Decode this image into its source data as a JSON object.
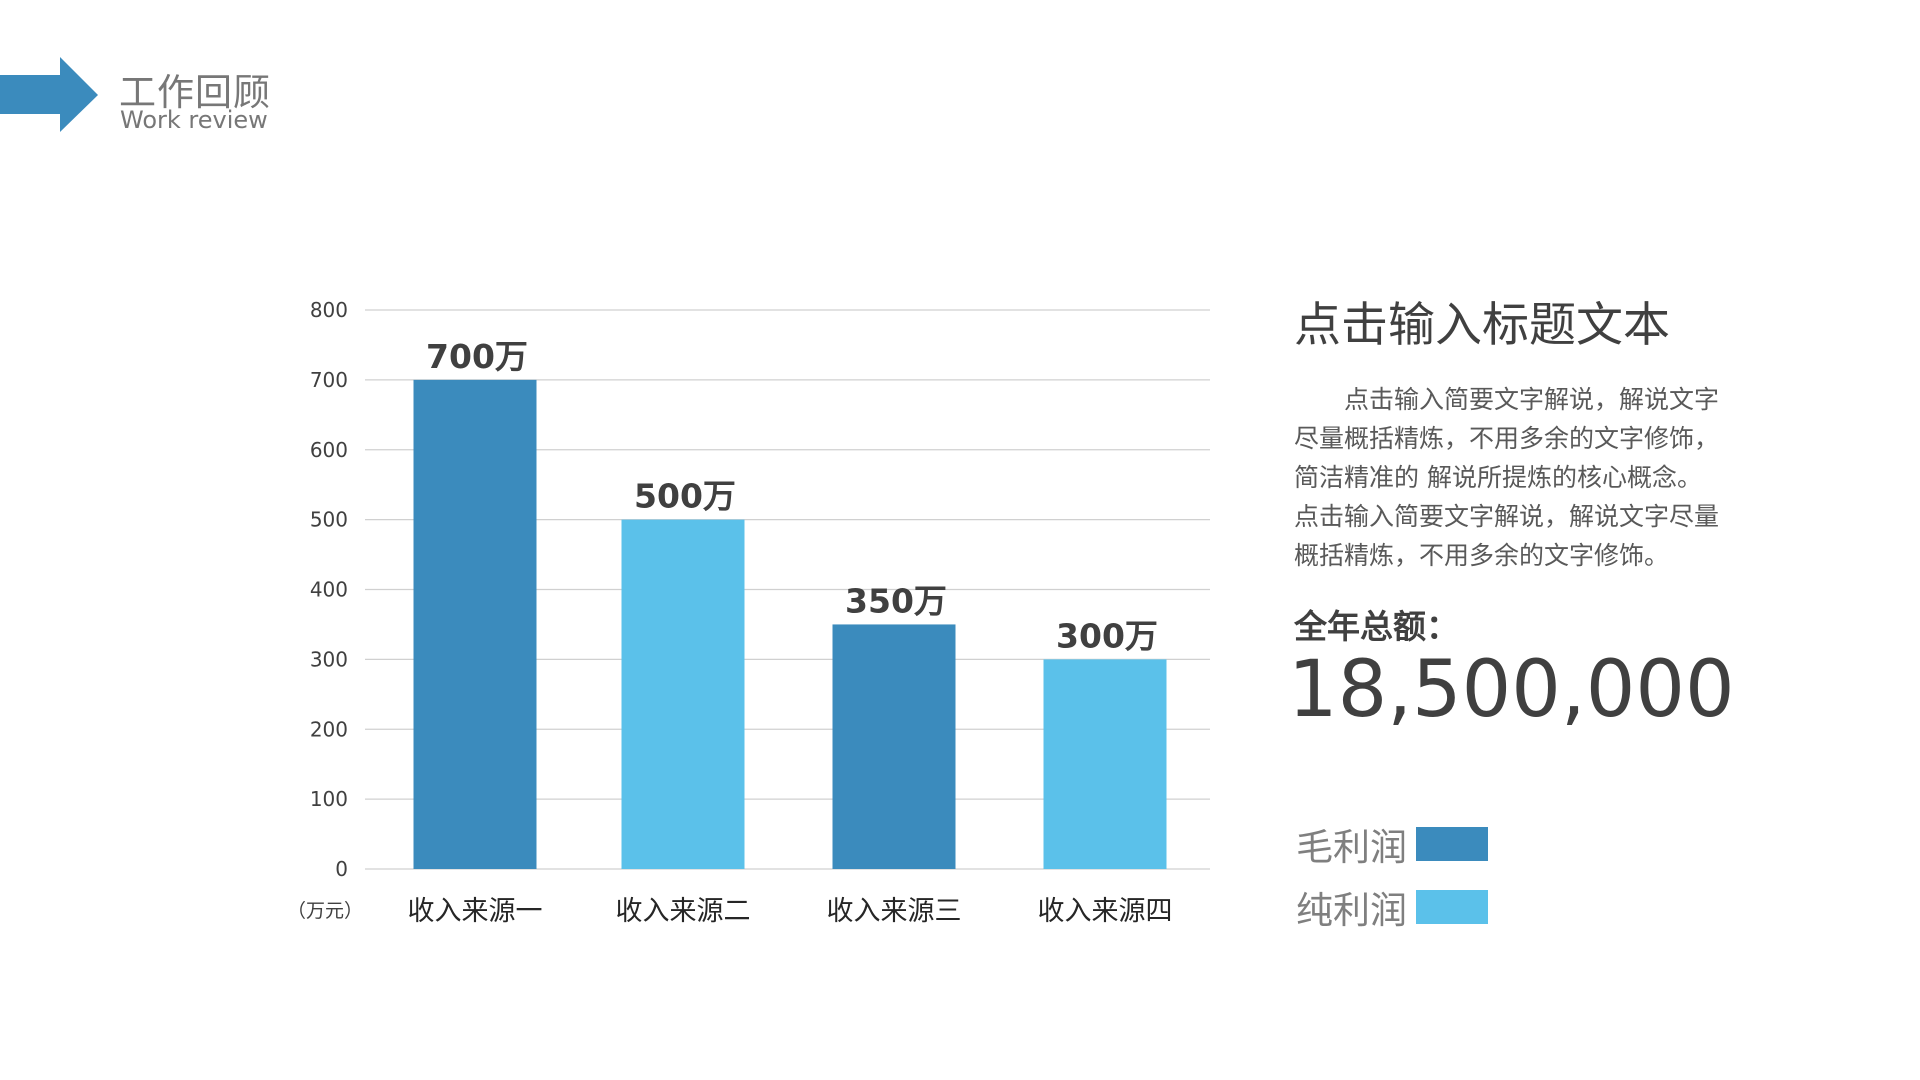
{
  "header": {
    "title_cn": "工作回顾",
    "title_en": "Work review",
    "arrow_color": "#3b8bbd"
  },
  "chart_data": {
    "type": "bar",
    "categories": [
      "收入来源一",
      "收入来源二",
      "收入来源三",
      "收入来源四"
    ],
    "values": [
      700,
      500,
      350,
      300
    ],
    "data_labels": [
      "700万",
      "500万",
      "350万",
      "300万"
    ],
    "bar_colors": [
      "#3b8bbd",
      "#5bc1ea",
      "#3b8bbd",
      "#5bc1ea"
    ],
    "unit_label": "（万元）",
    "ylim": [
      0,
      800
    ],
    "yticks": [
      0,
      100,
      200,
      300,
      400,
      500,
      600,
      700,
      800
    ],
    "grid": true
  },
  "side": {
    "title": "点击输入标题文本",
    "paragraph_lines": [
      "　　点击输入简要文字解说，解说文字",
      "尽量概括精炼，不用多余的文字修饰，",
      "简洁精准的 解说所提炼的核心概念。",
      "点击输入简要文字解说，解说文字尽量",
      "概括精炼，不用多余的文字修饰。"
    ],
    "total_label": "全年总额：",
    "total_value": "18,500,000"
  },
  "legend": [
    {
      "label": "毛利润",
      "color": "#3b8bbd"
    },
    {
      "label": "纯利润",
      "color": "#5bc1ea"
    }
  ]
}
